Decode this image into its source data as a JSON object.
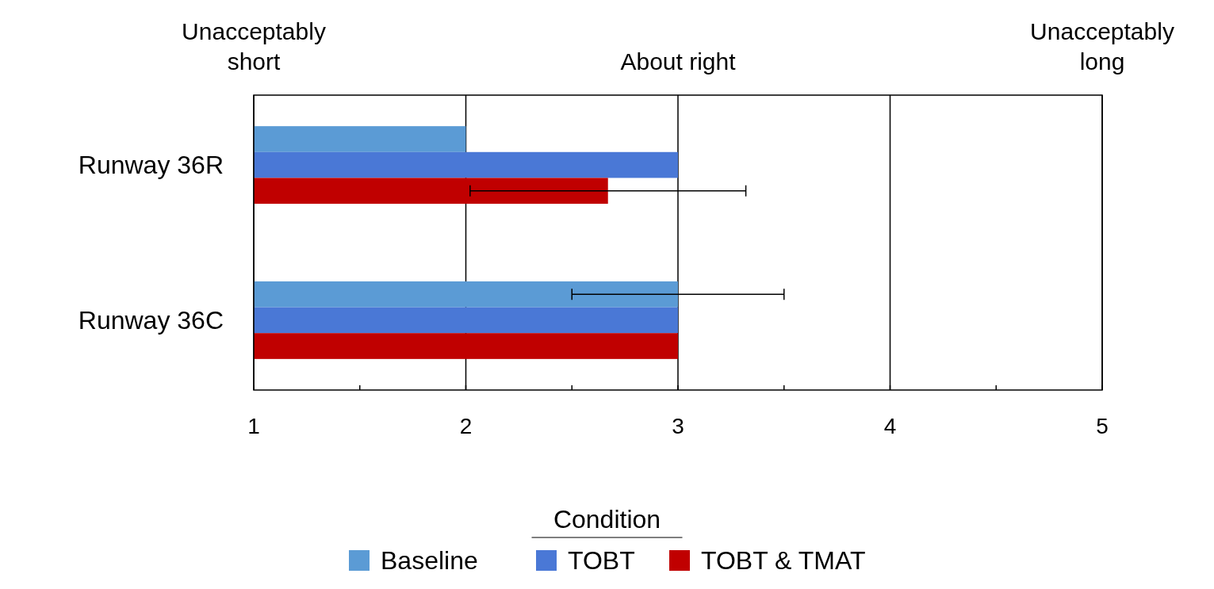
{
  "chart_data": {
    "type": "bar",
    "orientation": "horizontal",
    "categories": [
      "Runway 36R",
      "Runway 36C"
    ],
    "series": [
      {
        "name": "Baseline",
        "color": "#5b9bd5",
        "values": [
          2,
          3
        ],
        "errors": [
          null,
          0.5
        ]
      },
      {
        "name": "TOBT",
        "color": "#4a78d6",
        "values": [
          3,
          3
        ]
      },
      {
        "name": "TOBT & TMAT",
        "color": "#c00000",
        "values": [
          2.67,
          3
        ],
        "errors": [
          0.65,
          null
        ]
      }
    ],
    "xlim": [
      1,
      5
    ],
    "xticks": [
      1,
      {
        "value": 1.5,
        "label": null
      },
      2,
      {
        "value": 2.5,
        "label": null
      },
      3,
      {
        "value": 3.5,
        "label": null
      },
      4,
      {
        "value": 4.5,
        "label": null
      },
      5
    ],
    "annotations": [
      "Unacceptably short",
      "About right",
      "Unacceptably long"
    ],
    "grid": "x",
    "legend": "bottom",
    "legend_title": "Condition"
  }
}
